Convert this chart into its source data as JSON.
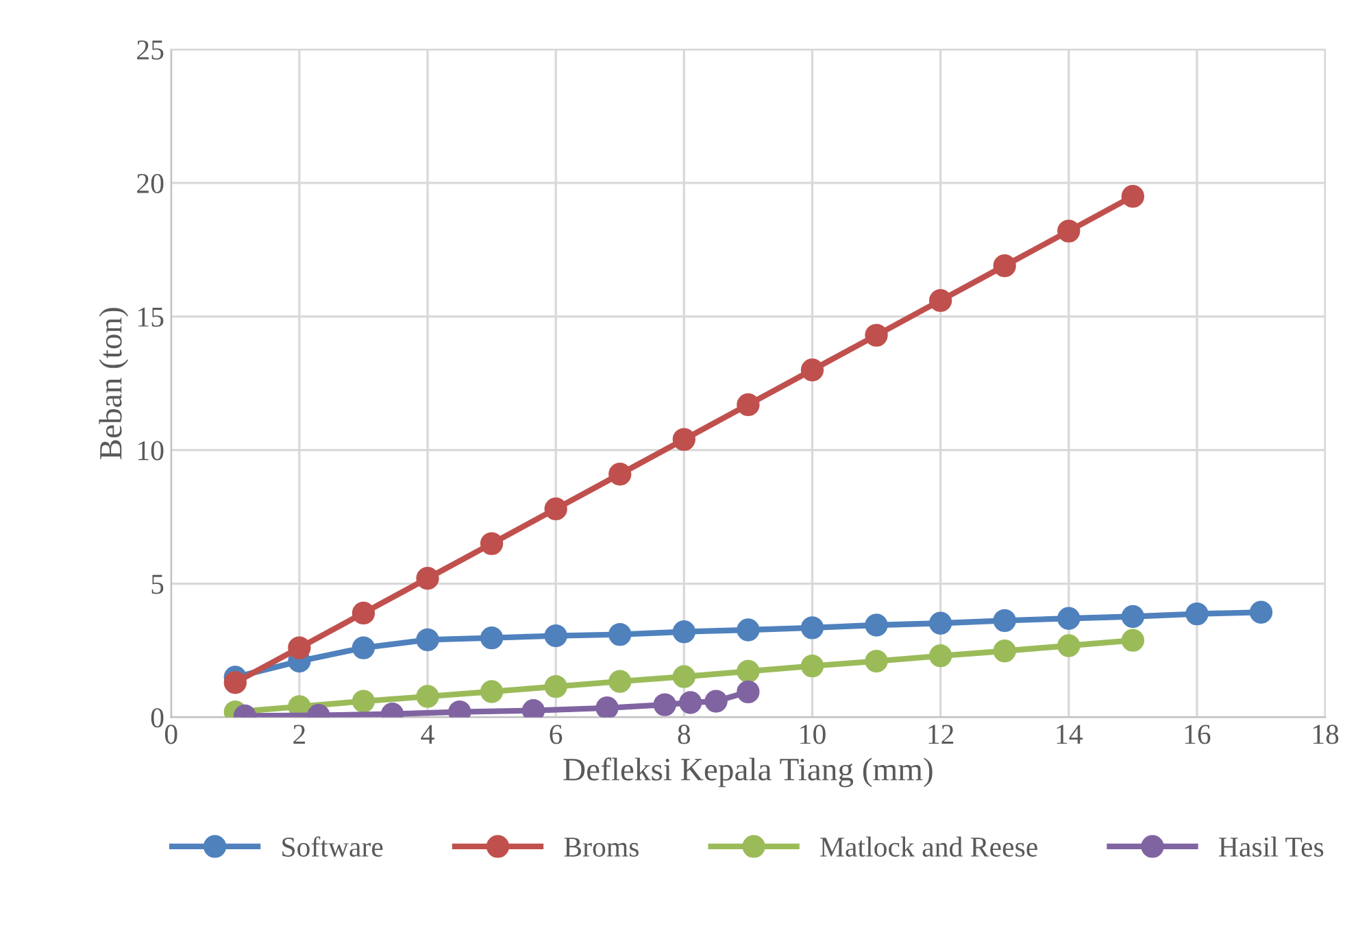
{
  "chart_data": {
    "type": "line",
    "xlabel": "Defleksi Kepala Tiang (mm)",
    "ylabel": "Beban (ton)",
    "xlim": [
      0,
      18
    ],
    "xticks": [
      0,
      2,
      4,
      6,
      8,
      10,
      12,
      14,
      16,
      18
    ],
    "ylim": [
      0,
      25
    ],
    "yticks": [
      0,
      5,
      10,
      15,
      20,
      25
    ],
    "grid": true,
    "legend": "bottom",
    "marker": "circle",
    "line_style": "solid",
    "series": [
      {
        "name": "Software",
        "color": "#4f81bd",
        "x": [
          1,
          2,
          3,
          4,
          5,
          6,
          7,
          8,
          9,
          10,
          11,
          12,
          13,
          14,
          15,
          16,
          17
        ],
        "values": [
          1.5,
          2.1,
          2.6,
          2.9,
          2.97,
          3.05,
          3.1,
          3.2,
          3.27,
          3.35,
          3.45,
          3.52,
          3.62,
          3.7,
          3.77,
          3.87,
          3.93
        ]
      },
      {
        "name": "Broms",
        "color": "#c0504d",
        "x": [
          1,
          2,
          3,
          4,
          5,
          6,
          7,
          8,
          9,
          10,
          11,
          12,
          13,
          14,
          15
        ],
        "values": [
          1.3,
          2.6,
          3.9,
          5.2,
          6.5,
          7.8,
          9.1,
          10.4,
          11.7,
          13.0,
          14.3,
          15.6,
          16.9,
          18.2,
          19.5
        ]
      },
      {
        "name": "Matlock and Reese",
        "color": "#9bbb59",
        "x": [
          1,
          2,
          3,
          4,
          5,
          6,
          7,
          8,
          9,
          10,
          11,
          12,
          13,
          14,
          15
        ],
        "values": [
          0.2,
          0.4,
          0.6,
          0.78,
          0.96,
          1.15,
          1.34,
          1.52,
          1.72,
          1.92,
          2.1,
          2.3,
          2.48,
          2.68,
          2.88
        ]
      },
      {
        "name": "Hasil Tes",
        "color": "#8064a2",
        "x": [
          1.15,
          2.3,
          3.45,
          4.5,
          5.65,
          6.8,
          7.7,
          8.1,
          8.5,
          9.0
        ],
        "values": [
          0.05,
          0.07,
          0.12,
          0.2,
          0.25,
          0.35,
          0.47,
          0.55,
          0.6,
          0.95
        ]
      }
    ]
  }
}
